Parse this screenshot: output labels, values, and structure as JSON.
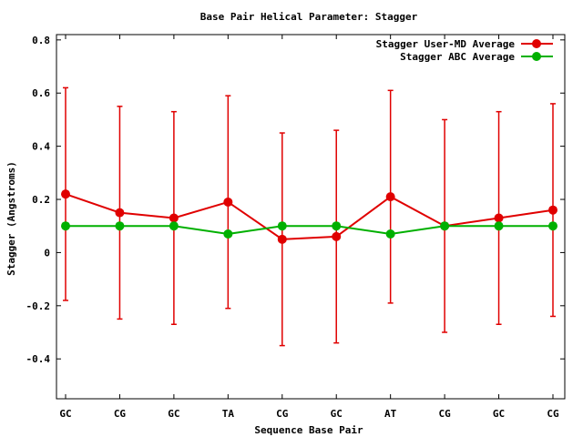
{
  "chart_data": {
    "type": "line",
    "title": "Base Pair Helical Parameter: Stagger",
    "xlabel": "Sequence Base Pair",
    "ylabel": "Stagger (Angstroms)",
    "categories": [
      "GC",
      "CG",
      "GC",
      "TA",
      "CG",
      "GC",
      "AT",
      "CG",
      "GC",
      "CG"
    ],
    "ylim": [
      -0.55,
      0.82
    ],
    "yticks": [
      -0.4,
      -0.2,
      0,
      0.2,
      0.4,
      0.6,
      0.8
    ],
    "ytick_labels": [
      "-0.4",
      "-0.2",
      "0",
      "0.2",
      "0.4",
      "0.6",
      "0.8"
    ],
    "grid": false,
    "legend_position": "top-right",
    "series": [
      {
        "name": "Stagger User-MD Average",
        "color": "#e00000",
        "values": [
          0.22,
          0.15,
          0.13,
          0.19,
          0.05,
          0.06,
          0.21,
          0.1,
          0.13,
          0.16
        ],
        "error_low": [
          -0.18,
          -0.25,
          -0.27,
          -0.21,
          -0.35,
          -0.34,
          -0.19,
          -0.3,
          -0.27,
          -0.24
        ],
        "error_high": [
          0.62,
          0.55,
          0.53,
          0.59,
          0.45,
          0.46,
          0.61,
          0.5,
          0.53,
          0.56
        ]
      },
      {
        "name": "Stagger ABC Average",
        "color": "#00b000",
        "values": [
          0.1,
          0.1,
          0.1,
          0.07,
          0.1,
          0.1,
          0.07,
          0.1,
          0.1,
          0.1
        ]
      }
    ]
  }
}
